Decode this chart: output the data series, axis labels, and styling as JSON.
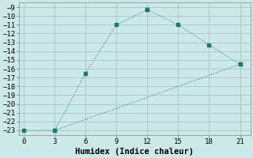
{
  "xlabel": "Humidex (Indice chaleur)",
  "background_color": "#cce8e8",
  "grid_color": "#aacccc",
  "line_color": "#1a7a6e",
  "series1_x": [
    0,
    3,
    6,
    9,
    12
  ],
  "series1_y": [
    -23,
    -23,
    -16.5,
    -11,
    -9.3
  ],
  "series2_x": [
    12,
    15,
    18,
    21
  ],
  "series2_y": [
    -9.3,
    -11,
    -13.3,
    -15.5
  ],
  "series3_x": [
    3,
    21
  ],
  "series3_y": [
    -23,
    -15.5
  ],
  "xlim": [
    -0.5,
    22
  ],
  "ylim": [
    -23.5,
    -8.5
  ],
  "xticks": [
    0,
    3,
    6,
    9,
    12,
    15,
    18,
    21
  ],
  "yticks": [
    -9,
    -10,
    -11,
    -12,
    -13,
    -14,
    -15,
    -16,
    -17,
    -18,
    -19,
    -20,
    -21,
    -22,
    -23
  ],
  "tick_font_size": 6.5,
  "xlabel_font_size": 7.5
}
